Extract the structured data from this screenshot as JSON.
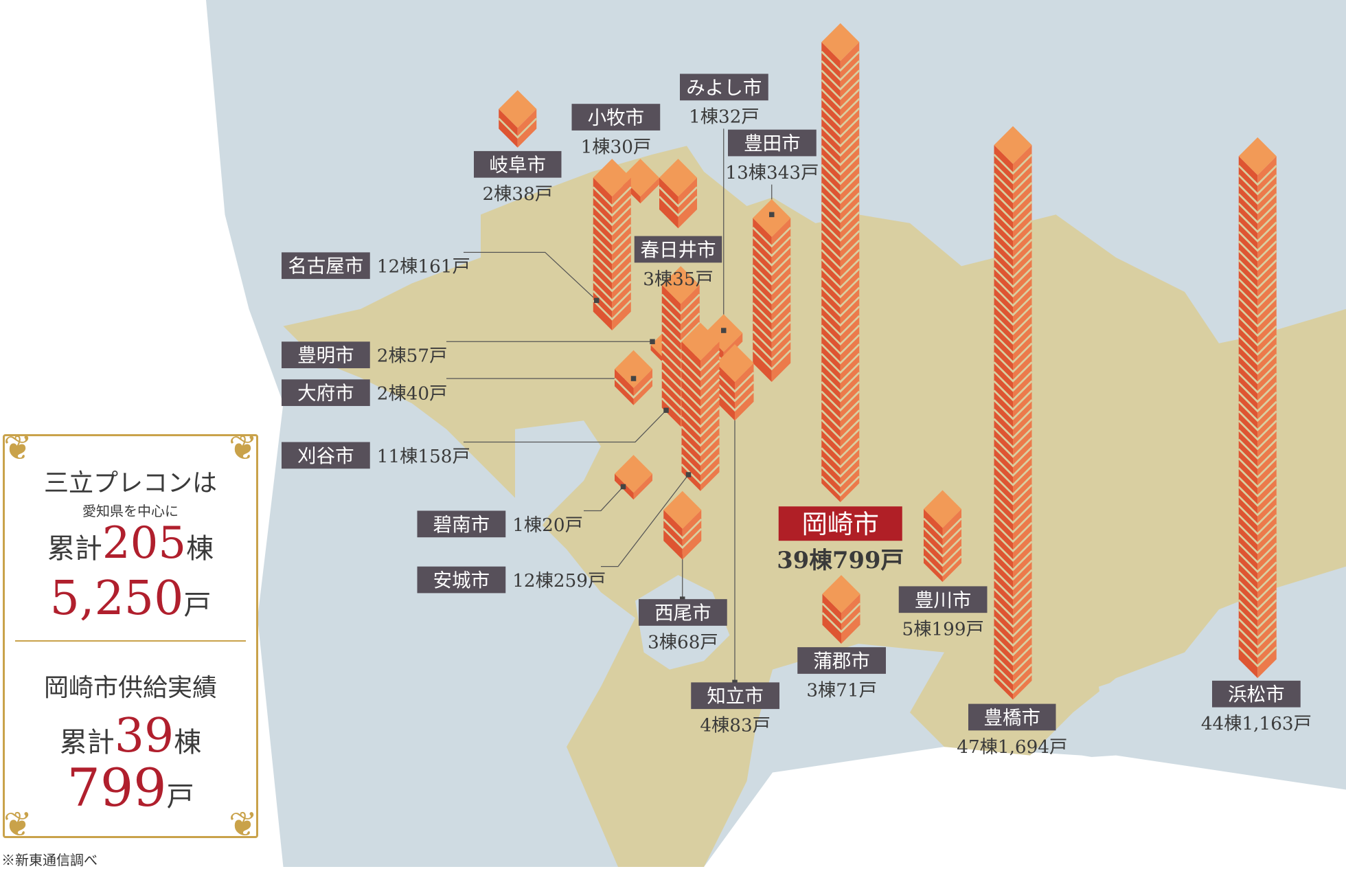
{
  "colors": {
    "land": "#d9cfa1",
    "water": "#cfdbe2",
    "label_bg": "#57505a",
    "highlight_bg": "#b01f26",
    "tower_left": "#de5532",
    "tower_right": "#ec7a4b",
    "tower_top": "#f29a57"
  },
  "cities": [
    {
      "name": "岐阜市",
      "stats": "2棟38戸"
    },
    {
      "name": "小牧市",
      "stats": "1棟30戸"
    },
    {
      "name": "みよし市",
      "stats": "1棟32戸"
    },
    {
      "name": "豊田市",
      "stats": "13棟343戸"
    },
    {
      "name": "春日井市",
      "stats": "3棟35戸"
    },
    {
      "name": "名古屋市",
      "stats": "12棟161戸"
    },
    {
      "name": "豊明市",
      "stats": "2棟57戸"
    },
    {
      "name": "大府市",
      "stats": "2棟40戸"
    },
    {
      "name": "刈谷市",
      "stats": "11棟158戸"
    },
    {
      "name": "碧南市",
      "stats": "1棟20戸"
    },
    {
      "name": "安城市",
      "stats": "12棟259戸"
    },
    {
      "name": "西尾市",
      "stats": "3棟68戸"
    },
    {
      "name": "知立市",
      "stats": "4棟83戸"
    },
    {
      "name": "蒲郡市",
      "stats": "3棟71戸"
    },
    {
      "name": "岡崎市",
      "stats": "39棟799戸",
      "highlight": true
    },
    {
      "name": "豊川市",
      "stats": "5棟199戸"
    },
    {
      "name": "豊橋市",
      "stats": "47棟1,694戸"
    },
    {
      "name": "浜松市",
      "stats": "44棟1,163戸"
    }
  ],
  "summary": {
    "title": "三立プレコンは",
    "subtitle": "愛知県を中心に",
    "total_prefix": "累計",
    "total_buildings": "205",
    "buildings_unit": "棟",
    "total_units": "5,250",
    "units_unit": "戸",
    "okazaki_title": "岡崎市供給実績",
    "okazaki_prefix": "累計",
    "okazaki_buildings": "39",
    "okazaki_buildings_unit": "棟",
    "okazaki_units": "799",
    "okazaki_units_unit": "戸"
  },
  "note": "※新東通信調べ"
}
